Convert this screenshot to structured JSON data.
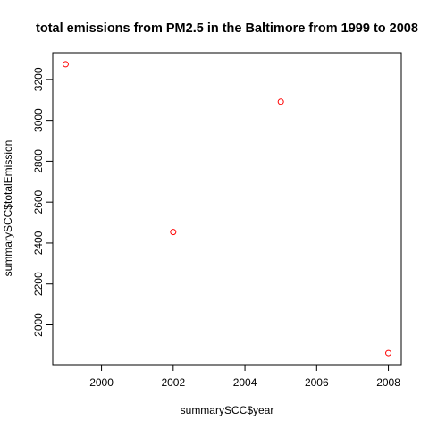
{
  "chart_data": {
    "type": "scatter",
    "title": "total emissions from PM2.5 in the Baltimore from 1999 to 2008",
    "xlabel": "summarySCC$year",
    "ylabel": "summarySCC$totalEmission",
    "x": [
      1999,
      2002,
      2005,
      2008
    ],
    "y": [
      3274,
      2454,
      3091,
      1862
    ],
    "xlim": [
      1999,
      2008
    ],
    "ylim": [
      1862,
      3274
    ],
    "xticks": [
      2000,
      2002,
      2004,
      2006,
      2008
    ],
    "yticks": [
      2000,
      2200,
      2400,
      2600,
      2800,
      3000,
      3200
    ],
    "point_color": "#ff0000",
    "marker": "open-circle",
    "grid": false,
    "legend": "none"
  }
}
